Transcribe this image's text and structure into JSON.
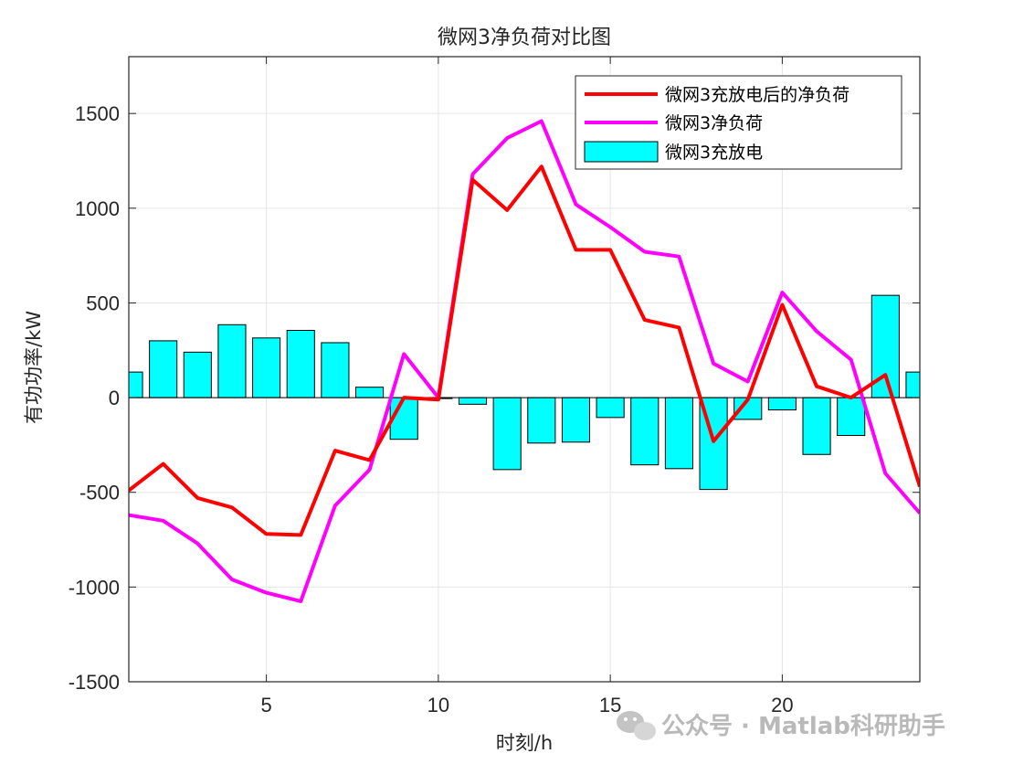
{
  "chart_data": {
    "type": "bar+line",
    "title": "微网3净负荷对比图",
    "xlabel": "时刻/h",
    "ylabel": "有功功率/kW",
    "xlim": [
      1,
      24
    ],
    "ylim": [
      -1500,
      1800
    ],
    "xticks": [
      5,
      10,
      15,
      20
    ],
    "yticks": [
      -1500,
      -1000,
      -500,
      0,
      500,
      1000,
      1500
    ],
    "xtick_labels": [
      "5",
      "10",
      "15",
      "20"
    ],
    "ytick_labels": [
      "-1500",
      "-1000",
      "-500",
      "0",
      "500",
      "1000",
      "1500"
    ],
    "grid": true,
    "legend_position": "top-right",
    "x": [
      1,
      2,
      3,
      4,
      5,
      6,
      7,
      8,
      9,
      10,
      11,
      12,
      13,
      14,
      15,
      16,
      17,
      18,
      19,
      20,
      21,
      22,
      23,
      24
    ],
    "series": [
      {
        "name": "微网3充放电后的净负荷",
        "type": "line",
        "color": "#ff0000",
        "values": [
          -490,
          -350,
          -530,
          -580,
          -720,
          -725,
          -280,
          -330,
          0,
          -10,
          1150,
          990,
          1220,
          780,
          780,
          410,
          370,
          -230,
          -10,
          490,
          60,
          0,
          120,
          -470
        ]
      },
      {
        "name": "微网3净负荷",
        "type": "line",
        "color": "#ff00ff",
        "values": [
          -620,
          -650,
          -770,
          -960,
          -1030,
          -1075,
          -570,
          -380,
          230,
          0,
          1180,
          1370,
          1460,
          1020,
          900,
          770,
          745,
          180,
          85,
          555,
          350,
          200,
          -400,
          -610
        ]
      },
      {
        "name": "微网3充放电",
        "type": "bar",
        "color": "#00ffff",
        "values": [
          135,
          300,
          240,
          385,
          315,
          355,
          290,
          55,
          -220,
          -5,
          -35,
          -380,
          -240,
          -235,
          -105,
          -355,
          -375,
          -485,
          -115,
          -65,
          -300,
          -200,
          540,
          135
        ]
      }
    ]
  },
  "watermark": "公众号 · Matlab科研助手"
}
